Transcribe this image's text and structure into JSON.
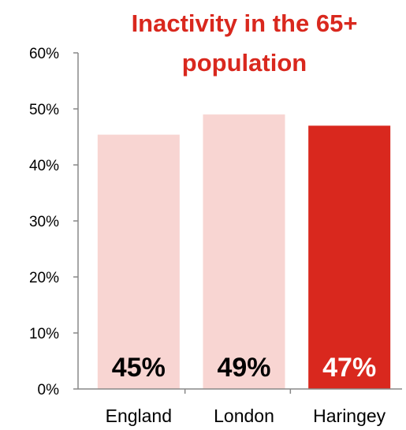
{
  "chart_data": {
    "type": "bar",
    "title_lines": [
      "Inactivity in the 65+",
      "population"
    ],
    "categories": [
      "England",
      "London",
      "Haringey"
    ],
    "values": [
      45.4,
      49.0,
      47.0
    ],
    "data_labels": [
      "45%",
      "49%",
      "47%"
    ],
    "ylim": [
      0,
      60
    ],
    "yticks": [
      0,
      10,
      20,
      30,
      40,
      50,
      60
    ],
    "ytick_labels": [
      "0%",
      "10%",
      "20%",
      "30%",
      "40%",
      "50%",
      "60%"
    ],
    "xlabel": "",
    "ylabel": "",
    "grid": false,
    "legend": "none",
    "highlight_index": 2
  },
  "colors": {
    "title": "#d9281e",
    "bar_default": "#f8d5d2",
    "bar_highlight": "#d9281e",
    "label_on_light": "#000000",
    "label_on_highlight": "#ffffff",
    "axis": "#888888",
    "text": "#000000"
  }
}
